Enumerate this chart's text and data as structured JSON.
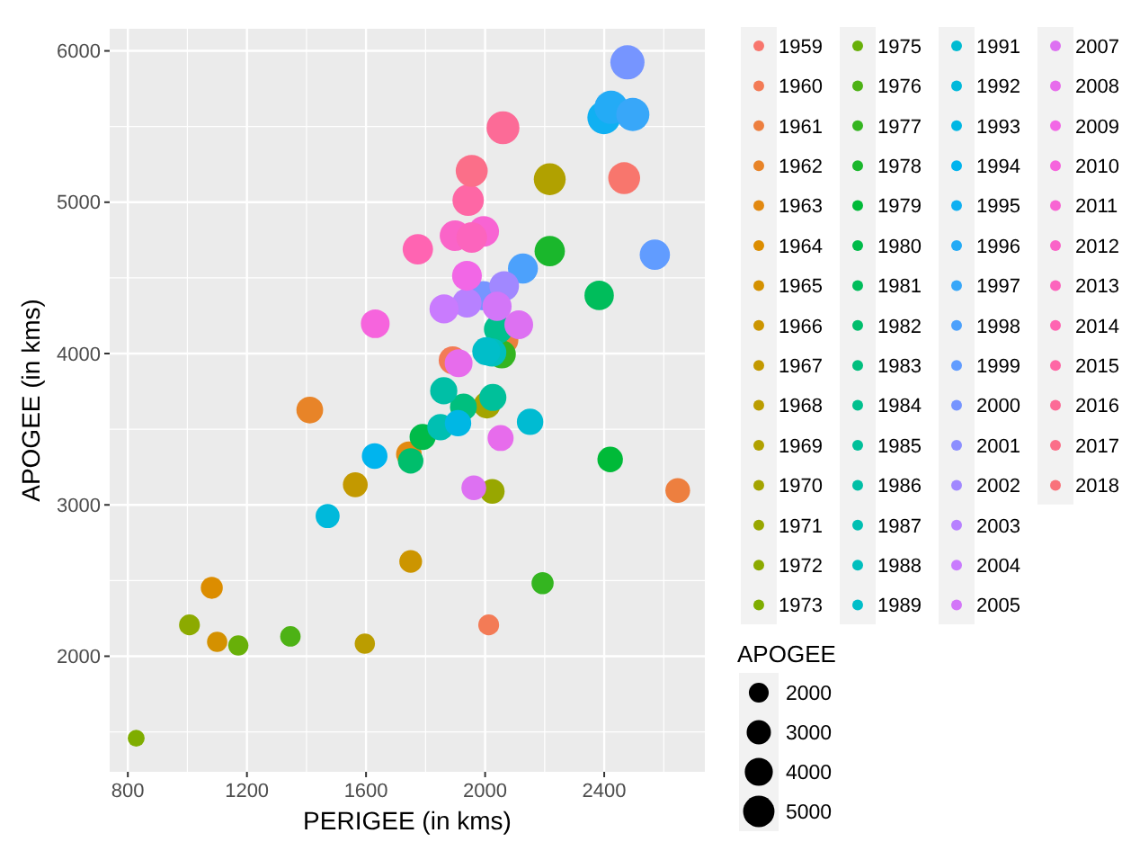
{
  "chart_data": {
    "type": "bubble",
    "xlabel": "PERIGEE (in kms)",
    "ylabel": "APOGEE (in kms)",
    "legend_title": "APOGEE",
    "xlim": [
      739,
      2738
    ],
    "ylim": [
      1236,
      6146
    ],
    "xticks": [
      800,
      1200,
      1600,
      2000,
      2400
    ],
    "yticks": [
      2000,
      3000,
      4000,
      5000,
      6000
    ],
    "grid": true,
    "legend": "right",
    "marker": "circle",
    "size_legend": [
      2000,
      3000,
      4000,
      5000
    ],
    "series": [
      {
        "name": "1959",
        "color": "#f8766d",
        "x": [
          2467
        ],
        "values": [
          5159
        ],
        "sizes": [
          5159
        ]
      },
      {
        "name": "1960",
        "color": "#f37b56",
        "x": [
          1891,
          2012
        ],
        "values": [
          3956,
          2207
        ],
        "sizes": [
          3956,
          2207
        ]
      },
      {
        "name": "1961",
        "color": "#ed7f3f",
        "x": [
          2064,
          2647
        ],
        "values": [
          4090,
          3095
        ],
        "sizes": [
          4090,
          3095
        ]
      },
      {
        "name": "1962",
        "color": "#e88428",
        "x": [
          1411
        ],
        "values": [
          3627
        ],
        "sizes": [
          3627
        ]
      },
      {
        "name": "1963",
        "color": "#e28911",
        "x": [
          1744
        ],
        "values": [
          3335
        ],
        "sizes": [
          3335
        ]
      },
      {
        "name": "1964",
        "color": "#dc8d00",
        "x": [
          1082
        ],
        "values": [
          2452
        ],
        "sizes": [
          2452
        ]
      },
      {
        "name": "1965",
        "color": "#d49100",
        "x": [
          1100
        ],
        "values": [
          2095
        ],
        "sizes": [
          2095
        ]
      },
      {
        "name": "1966",
        "color": "#cc9500",
        "x": [
          1750
        ],
        "values": [
          2626
        ],
        "sizes": [
          2626
        ]
      },
      {
        "name": "1967",
        "color": "#c39900",
        "x": [
          1564
        ],
        "values": [
          3133
        ],
        "sizes": [
          3133
        ]
      },
      {
        "name": "1968",
        "color": "#bb9d00",
        "x": [
          1596
        ],
        "values": [
          2083
        ],
        "sizes": [
          2083
        ]
      },
      {
        "name": "1969",
        "color": "#b1a100",
        "x": [
          2217
        ],
        "values": [
          5152
        ],
        "sizes": [
          5152
        ]
      },
      {
        "name": "1970",
        "color": "#a4a400",
        "x": [
          2006
        ],
        "values": [
          3660
        ],
        "sizes": [
          3660
        ]
      },
      {
        "name": "1971",
        "color": "#98a700",
        "x": [
          2024
        ],
        "values": [
          3089
        ],
        "sizes": [
          3089
        ]
      },
      {
        "name": "1972",
        "color": "#8caa00",
        "x": [
          1007
        ],
        "values": [
          2207
        ],
        "sizes": [
          2207
        ]
      },
      {
        "name": "1973",
        "color": "#7fad00",
        "x": [
          828
        ],
        "values": [
          1458
        ],
        "sizes": [
          1458
        ]
      },
      {
        "name": "1975",
        "color": "#68b009",
        "x": [
          1171
        ],
        "values": [
          2071
        ],
        "sizes": [
          2071
        ]
      },
      {
        "name": "1976",
        "color": "#4db215",
        "x": [
          1346
        ],
        "values": [
          2131
        ],
        "sizes": [
          2131
        ]
      },
      {
        "name": "1977",
        "color": "#34b520",
        "x": [
          2056,
          2193
        ],
        "values": [
          3995,
          2483
        ],
        "sizes": [
          3995,
          2483
        ]
      },
      {
        "name": "1978",
        "color": "#1ab72c",
        "x": [
          2217
        ],
        "values": [
          4677
        ],
        "sizes": [
          4677
        ]
      },
      {
        "name": "1979",
        "color": "#00ba38",
        "x": [
          2420
        ],
        "values": [
          3300
        ],
        "sizes": [
          3300
        ]
      },
      {
        "name": "1980",
        "color": "#00bb49",
        "x": [
          1790
        ],
        "values": [
          3449
        ],
        "sizes": [
          3449
        ]
      },
      {
        "name": "1981",
        "color": "#00bd5b",
        "x": [
          2383
        ],
        "values": [
          4384
        ],
        "sizes": [
          4384
        ]
      },
      {
        "name": "1982",
        "color": "#00be6c",
        "x": [
          1750
        ],
        "values": [
          3291
        ],
        "sizes": [
          3291
        ]
      },
      {
        "name": "1983",
        "color": "#00bf7e",
        "x": [
          1927
        ],
        "values": [
          3647
        ],
        "sizes": [
          3647
        ]
      },
      {
        "name": "1984",
        "color": "#00c08e",
        "x": [
          2044
        ],
        "values": [
          4161
        ],
        "sizes": [
          4161
        ]
      },
      {
        "name": "1985",
        "color": "#00c09a",
        "x": [
          2026
        ],
        "values": [
          3710
        ],
        "sizes": [
          3710
        ]
      },
      {
        "name": "1986",
        "color": "#00bfa6",
        "x": [
          1861
        ],
        "values": [
          3754
        ],
        "sizes": [
          3754
        ]
      },
      {
        "name": "1987",
        "color": "#00bfb2",
        "x": [
          1850
        ],
        "values": [
          3513
        ],
        "sizes": [
          3513
        ]
      },
      {
        "name": "1988",
        "color": "#00bfbe",
        "x": [
          2024
        ],
        "values": [
          4007
        ],
        "sizes": [
          4007
        ]
      },
      {
        "name": "1989",
        "color": "#00bec9",
        "x": [
          2004
        ],
        "values": [
          4015
        ],
        "sizes": [
          4015
        ]
      },
      {
        "name": "1991",
        "color": "#00bbd2",
        "x": [
          2151
        ],
        "values": [
          3549
        ],
        "sizes": [
          3549
        ]
      },
      {
        "name": "1992",
        "color": "#00b9db",
        "x": [
          1471
        ],
        "values": [
          2926
        ],
        "sizes": [
          2926
        ]
      },
      {
        "name": "1993",
        "color": "#00b7e4",
        "x": [
          1909
        ],
        "values": [
          3540
        ],
        "sizes": [
          3540
        ]
      },
      {
        "name": "1994",
        "color": "#00b4ee",
        "x": [
          1629
        ],
        "values": [
          3323
        ],
        "sizes": [
          3323
        ]
      },
      {
        "name": "1995",
        "color": "#10b0f2",
        "x": [
          2399
        ],
        "values": [
          5559
        ],
        "sizes": [
          5559
        ]
      },
      {
        "name": "1996",
        "color": "#24abf6",
        "x": [
          2423
        ],
        "values": [
          5627
        ],
        "sizes": [
          5627
        ]
      },
      {
        "name": "1997",
        "color": "#38a7f9",
        "x": [
          2496
        ],
        "values": [
          5580
        ],
        "sizes": [
          5580
        ]
      },
      {
        "name": "1998",
        "color": "#4ca1fc",
        "x": [
          2127
        ],
        "values": [
          4562
        ],
        "sizes": [
          4562
        ]
      },
      {
        "name": "1999",
        "color": "#619cff",
        "x": [
          2570
        ],
        "values": [
          4653
        ],
        "sizes": [
          4653
        ]
      },
      {
        "name": "2000",
        "color": "#7695ff",
        "x": [
          1995,
          2478
        ],
        "values": [
          4382,
          5924
        ],
        "sizes": [
          4382,
          5924
        ]
      },
      {
        "name": "2001",
        "color": "#8c8fff"
      },
      {
        "name": "2002",
        "color": "#a188ff",
        "x": [
          2064
        ],
        "values": [
          4446
        ],
        "sizes": [
          4446
        ]
      },
      {
        "name": "2003",
        "color": "#b781ff",
        "x": [
          1939
        ],
        "values": [
          4335
        ],
        "sizes": [
          4335
        ]
      },
      {
        "name": "2004",
        "color": "#c97bfe",
        "x": [
          1862
        ],
        "values": [
          4295
        ],
        "sizes": [
          4295
        ]
      },
      {
        "name": "2005",
        "color": "#d376f8",
        "x": [
          2040
        ],
        "values": [
          4312
        ],
        "sizes": [
          4312
        ]
      },
      {
        "name": "2007",
        "color": "#dd71f2",
        "x": [
          2113,
          1962
        ],
        "values": [
          4190,
          3113
        ],
        "sizes": [
          4190,
          3113
        ]
      },
      {
        "name": "2008",
        "color": "#e76cec",
        "x": [
          1911,
          2052
        ],
        "values": [
          3936,
          3442
        ],
        "sizes": [
          3936,
          3442
        ]
      },
      {
        "name": "2009",
        "color": "#f267e6",
        "x": [
          1939
        ],
        "values": [
          4514
        ],
        "sizes": [
          4514
        ]
      },
      {
        "name": "2010",
        "color": "#f664dd",
        "x": [
          1631
        ],
        "values": [
          4197
        ],
        "sizes": [
          4197
        ]
      },
      {
        "name": "2011",
        "color": "#f864d3",
        "x": [
          1995
        ],
        "values": [
          4807
        ],
        "sizes": [
          4807
        ]
      },
      {
        "name": "2012",
        "color": "#fa64c8",
        "x": [
          1899
        ],
        "values": [
          4779
        ],
        "sizes": [
          4779
        ]
      },
      {
        "name": "2013",
        "color": "#fc64bd",
        "x": [
          1955
        ],
        "values": [
          4767
        ],
        "sizes": [
          4767
        ]
      },
      {
        "name": "2014",
        "color": "#ff64b2",
        "x": [
          1774
        ],
        "values": [
          4689
        ],
        "sizes": [
          4689
        ]
      },
      {
        "name": "2015",
        "color": "#fe67a5",
        "x": [
          1943
        ],
        "values": [
          5013
        ],
        "sizes": [
          5013
        ]
      },
      {
        "name": "2016",
        "color": "#fc6b97",
        "x": [
          2060
        ],
        "values": [
          5492
        ],
        "sizes": [
          5492
        ]
      },
      {
        "name": "2017",
        "color": "#fb6f89",
        "x": [
          1955
        ],
        "values": [
          5207
        ],
        "sizes": [
          5207
        ]
      },
      {
        "name": "2018",
        "color": "#f9727b"
      }
    ]
  }
}
